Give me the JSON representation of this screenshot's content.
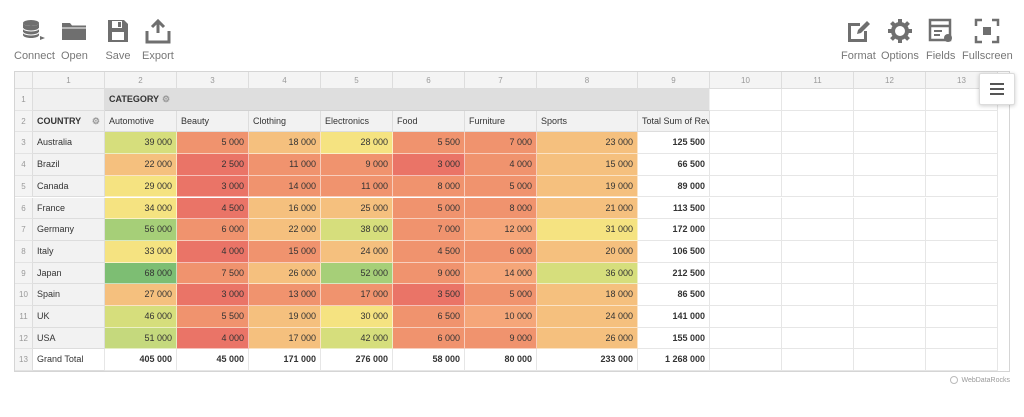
{
  "toolbar": {
    "left": [
      {
        "id": "connect",
        "label": "Connect",
        "icon": "database-connect-icon"
      },
      {
        "id": "open",
        "label": "Open",
        "icon": "folder-icon"
      },
      {
        "id": "save",
        "label": "Save",
        "icon": "floppy-disk-icon"
      },
      {
        "id": "export",
        "label": "Export",
        "icon": "export-icon"
      }
    ],
    "right": [
      {
        "id": "format",
        "label": "Format",
        "icon": "pencil-format-icon"
      },
      {
        "id": "options",
        "label": "Options",
        "icon": "gear-icon"
      },
      {
        "id": "fields",
        "label": "Fields",
        "icon": "fields-list-icon"
      },
      {
        "id": "fullscreen",
        "label": "Fullscreen",
        "icon": "fullscreen-icon"
      }
    ]
  },
  "grid": {
    "column_numbers": [
      "1",
      "2",
      "3",
      "4",
      "5",
      "6",
      "7",
      "8",
      "9",
      "10",
      "11",
      "12",
      "13"
    ],
    "row_numbers": [
      "1",
      "2",
      "3",
      "4",
      "5",
      "6",
      "7",
      "8",
      "9",
      "10",
      "11",
      "12",
      "13"
    ],
    "category_label": "CATEGORY",
    "country_label": "COUNTRY",
    "columns": [
      "Automotive",
      "Beauty",
      "Clothing",
      "Electronics",
      "Food",
      "Furniture",
      "Sports",
      "Total Sum of Revenue"
    ],
    "rows": [
      {
        "country": "Australia",
        "values": [
          "39 000",
          "5 000",
          "18 000",
          "28 000",
          "5 500",
          "7 000",
          "23 000",
          "125 500"
        ]
      },
      {
        "country": "Brazil",
        "values": [
          "22 000",
          "2 500",
          "11 000",
          "9 000",
          "3 000",
          "4 000",
          "15 000",
          "66 500"
        ]
      },
      {
        "country": "Canada",
        "values": [
          "29 000",
          "3 000",
          "14 000",
          "11 000",
          "8 000",
          "5 000",
          "19 000",
          "89 000"
        ]
      },
      {
        "country": "France",
        "values": [
          "34 000",
          "4 500",
          "16 000",
          "25 000",
          "5 000",
          "8 000",
          "21 000",
          "113 500"
        ]
      },
      {
        "country": "Germany",
        "values": [
          "56 000",
          "6 000",
          "22 000",
          "38 000",
          "7 000",
          "12 000",
          "31 000",
          "172 000"
        ]
      },
      {
        "country": "Italy",
        "values": [
          "33 000",
          "4 000",
          "15 000",
          "24 000",
          "4 500",
          "6 000",
          "20 000",
          "106 500"
        ]
      },
      {
        "country": "Japan",
        "values": [
          "68 000",
          "7 500",
          "26 000",
          "52 000",
          "9 000",
          "14 000",
          "36 000",
          "212 500"
        ]
      },
      {
        "country": "Spain",
        "values": [
          "27 000",
          "3 000",
          "13 000",
          "17 000",
          "3 500",
          "5 000",
          "18 000",
          "86 500"
        ]
      },
      {
        "country": "UK",
        "values": [
          "46 000",
          "5 500",
          "19 000",
          "30 000",
          "6 500",
          "10 000",
          "24 000",
          "141 000"
        ]
      },
      {
        "country": "USA",
        "values": [
          "51 000",
          "4 000",
          "17 000",
          "42 000",
          "6 000",
          "9 000",
          "26 000",
          "155 000"
        ]
      }
    ],
    "grand_total": {
      "label": "Grand Total",
      "values": [
        "405 000",
        "45 000",
        "171 000",
        "276 000",
        "58 000",
        "80 000",
        "233 000",
        "1 268 000"
      ]
    },
    "cell_colors": [
      [
        "#d6de7c",
        "#f0936e",
        "#f5c07e",
        "#f5e381",
        "#f0936e",
        "#f0936e",
        "#f5c07e"
      ],
      [
        "#f5c07e",
        "#ea7467",
        "#f0936e",
        "#f0936e",
        "#ea7467",
        "#f0936e",
        "#f5c07e"
      ],
      [
        "#f5e381",
        "#ea7467",
        "#f0936e",
        "#f0936e",
        "#f0936e",
        "#f0936e",
        "#f5c07e"
      ],
      [
        "#f5e381",
        "#ea7467",
        "#f5c07e",
        "#f5c07e",
        "#f0936e",
        "#f0936e",
        "#f5c07e"
      ],
      [
        "#a6cf78",
        "#f0936e",
        "#f5c07e",
        "#d6de7c",
        "#f0936e",
        "#f5a679",
        "#f5e381"
      ],
      [
        "#f5e381",
        "#ea7467",
        "#f0936e",
        "#f5c07e",
        "#f0936e",
        "#f0936e",
        "#f5c07e"
      ],
      [
        "#7dbe73",
        "#f0936e",
        "#f5c07e",
        "#a6cf78",
        "#f0936e",
        "#f5a679",
        "#d6de7c"
      ],
      [
        "#f5c07e",
        "#ea7467",
        "#f0936e",
        "#f0936e",
        "#ea7467",
        "#f0936e",
        "#f5c07e"
      ],
      [
        "#d6de7c",
        "#f0936e",
        "#f5c07e",
        "#f5e381",
        "#f0936e",
        "#f5a679",
        "#f5c07e"
      ],
      [
        "#c5d97d",
        "#ea7467",
        "#f5c07e",
        "#d6de7c",
        "#f0936e",
        "#f0936e",
        "#f5c07e"
      ]
    ]
  },
  "brand": "WebDataRocks",
  "menu_icon": "hamburger-menu-icon"
}
